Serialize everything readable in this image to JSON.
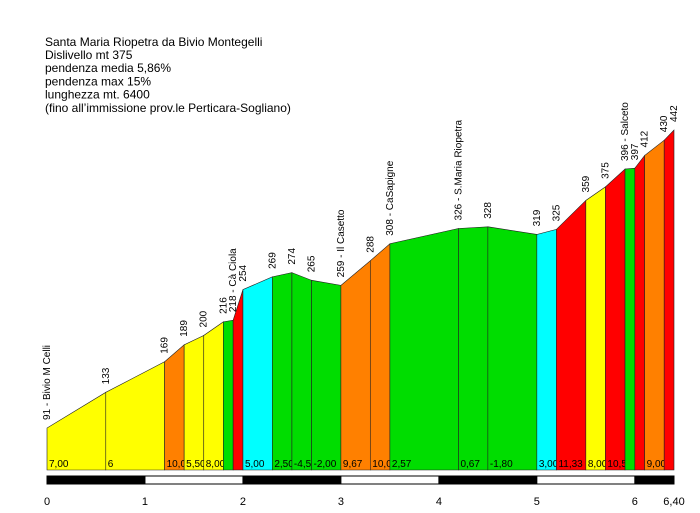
{
  "chart_data": {
    "type": "area",
    "title": "Santa Maria Riopetra da Bivio Montegelli",
    "notes": [
      "Dislivello mt 375",
      "pendenza media 5,86%",
      "pendenza max 15%",
      "lunghezza mt. 6400",
      "(fino all’immissione prov.le Perticara-Sogliano)"
    ],
    "x": [
      0,
      0.6,
      1.2,
      1.4,
      1.6,
      1.8,
      1.9,
      2.0,
      2.3,
      2.5,
      2.7,
      3.0,
      3.3,
      3.5,
      4.2,
      4.5,
      5.0,
      5.2,
      5.5,
      5.7,
      5.9,
      6.0,
      6.1,
      6.3,
      6.4
    ],
    "values": [
      91,
      133,
      169,
      189,
      200,
      216,
      218,
      254,
      269,
      274,
      265,
      259,
      288,
      308,
      326,
      328,
      319,
      325,
      359,
      375,
      396,
      397,
      412,
      430,
      442
    ],
    "value_labels": [
      "91 - Bivio M Celli",
      "133",
      "169",
      "189",
      "200",
      "216",
      "218 - Cà Ciola",
      "254",
      "269",
      "274",
      "265",
      "259 - Il Casetto",
      "288",
      "308 - CaSapigne",
      "326 - S.Maria Riopetra",
      "328",
      "319",
      "325",
      "359",
      "375",
      "396 - Salceto",
      "397",
      "412",
      "430",
      "442"
    ],
    "segment_labels": [
      "7,00",
      "6",
      "10,00",
      "5,50",
      "8,00",
      null,
      null,
      "5,00",
      "2,50",
      "-4,50",
      "-2,00",
      "9,67",
      "10,00",
      "2,57",
      "0,67",
      "-1,80",
      "3,00",
      "11,33",
      "8,00",
      "10,50",
      null,
      null,
      "9,00",
      null
    ],
    "segment_colors": [
      "#ffff00",
      "#ffff00",
      "#ff8000",
      "#ffff00",
      "#ffff00",
      "#00dd00",
      "#ff0000",
      "#00ffff",
      "#00dd00",
      "#00dd00",
      "#00dd00",
      "#ff8000",
      "#ff8000",
      "#00dd00",
      "#00dd00",
      "#00dd00",
      "#00ffff",
      "#ff0000",
      "#ffff00",
      "#ff0000",
      "#00dd00",
      "#ff0000",
      "#ff8000",
      "#ff0000"
    ],
    "xlim": [
      0,
      6.4
    ],
    "xticks": [
      0,
      1,
      2,
      3,
      4,
      5,
      6,
      {
        "value": 6.4,
        "label": "6,40"
      }
    ]
  }
}
